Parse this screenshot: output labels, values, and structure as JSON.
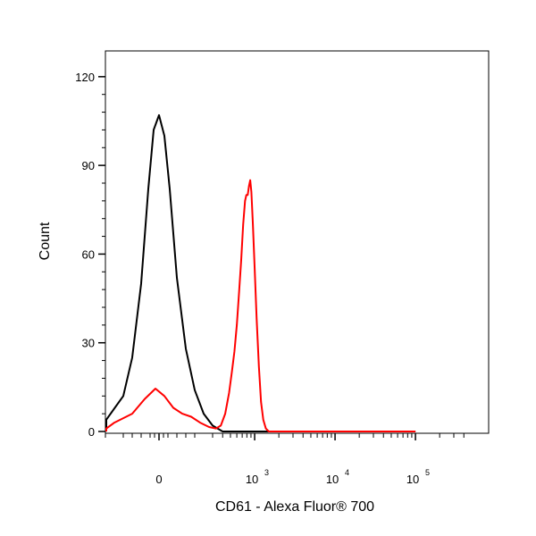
{
  "chart_data": {
    "type": "line",
    "xlabel": "CD61 - Alexa Fluor® 700",
    "ylabel": "Count",
    "x_scale": "biexponential",
    "ylim": [
      0,
      125
    ],
    "y_ticks": [
      0,
      30,
      60,
      90,
      120
    ],
    "x_ticks": [
      {
        "base": "0",
        "exp": ""
      },
      {
        "base": "10",
        "exp": "3"
      },
      {
        "base": "10",
        "exp": "4"
      },
      {
        "base": "10",
        "exp": "5"
      }
    ],
    "grid": false,
    "legend": "none",
    "series": [
      {
        "color": "#000000",
        "points": [
          [
            -600,
            0
          ],
          [
            -400,
            1
          ],
          [
            -300,
            4
          ],
          [
            -200,
            12
          ],
          [
            -150,
            25
          ],
          [
            -100,
            50
          ],
          [
            -60,
            82
          ],
          [
            -30,
            102
          ],
          [
            0,
            107
          ],
          [
            30,
            100
          ],
          [
            60,
            82
          ],
          [
            100,
            52
          ],
          [
            150,
            28
          ],
          [
            200,
            14
          ],
          [
            250,
            6
          ],
          [
            300,
            2
          ],
          [
            400,
            0
          ],
          [
            600,
            0
          ],
          [
            100000,
            0
          ]
        ]
      },
      {
        "color": "#ff0000",
        "points": [
          [
            -600,
            0
          ],
          [
            -400,
            1
          ],
          [
            -250,
            3
          ],
          [
            -150,
            6
          ],
          [
            -80,
            11
          ],
          [
            -20,
            14.5
          ],
          [
            30,
            12
          ],
          [
            80,
            8
          ],
          [
            130,
            6
          ],
          [
            180,
            5
          ],
          [
            230,
            3
          ],
          [
            280,
            1.5
          ],
          [
            330,
            1
          ],
          [
            380,
            2
          ],
          [
            430,
            6
          ],
          [
            480,
            13
          ],
          [
            520,
            20
          ],
          [
            560,
            27
          ],
          [
            600,
            36
          ],
          [
            640,
            47
          ],
          [
            680,
            58
          ],
          [
            720,
            70
          ],
          [
            760,
            78
          ],
          [
            790,
            80
          ],
          [
            820,
            80
          ],
          [
            850,
            83
          ],
          [
            880,
            85
          ],
          [
            910,
            81
          ],
          [
            950,
            70
          ],
          [
            1000,
            55
          ],
          [
            1060,
            38
          ],
          [
            1130,
            22
          ],
          [
            1200,
            10
          ],
          [
            1280,
            4
          ],
          [
            1380,
            1
          ],
          [
            1500,
            0
          ],
          [
            100000,
            0
          ]
        ]
      }
    ]
  }
}
